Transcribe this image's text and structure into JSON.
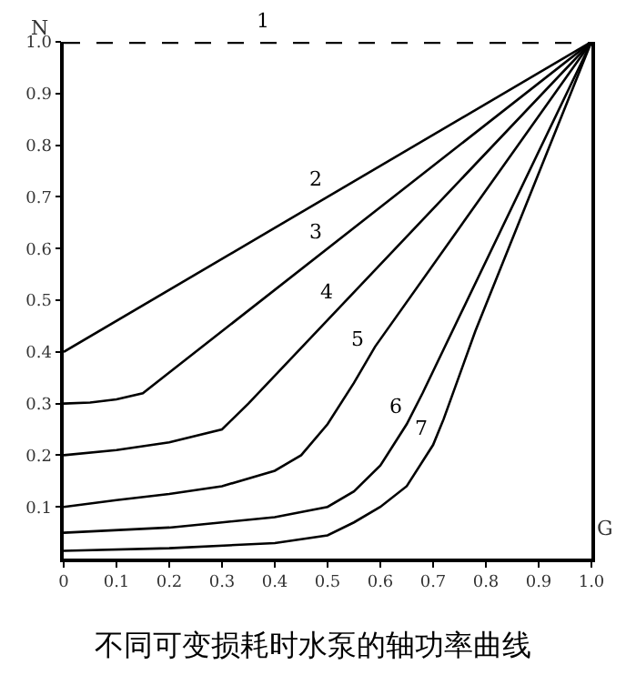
{
  "chart_data": {
    "type": "line",
    "title": "不同可变损耗时水泵的轴功率曲线",
    "xlabel": "G",
    "ylabel": "N",
    "xlim": [
      0,
      1
    ],
    "ylim": [
      0,
      1
    ],
    "xticks": [
      0,
      0.1,
      0.2,
      0.3,
      0.4,
      0.5,
      0.6,
      0.7,
      0.8,
      0.9,
      {
        "value": 1,
        "label": "1.0"
      }
    ],
    "yticks": [
      0.1,
      0.2,
      0.3,
      0.4,
      0.5,
      0.6,
      0.7,
      0.8,
      0.9,
      {
        "value": 1,
        "label": "1.0"
      }
    ],
    "marker": "none",
    "line_style": "solid",
    "series": [
      {
        "name": "1",
        "color": "#000000",
        "line_style": "dashed",
        "x": [
          0,
          1
        ],
        "values": [
          1,
          1
        ]
      },
      {
        "name": "2",
        "color": "#000000",
        "x": [
          0,
          1
        ],
        "values": [
          0.4,
          1
        ]
      },
      {
        "name": "3",
        "color": "#000000",
        "x": [
          0,
          0.05,
          0.1,
          0.15,
          0.2,
          1
        ],
        "values": [
          0.3,
          0.302,
          0.308,
          0.32,
          0.36,
          1
        ]
      },
      {
        "name": "4",
        "color": "#000000",
        "x": [
          0,
          0.1,
          0.2,
          0.3,
          0.35,
          1
        ],
        "values": [
          0.2,
          0.21,
          0.225,
          0.25,
          0.3,
          1
        ]
      },
      {
        "name": "5",
        "color": "#000000",
        "x": [
          0,
          0.1,
          0.2,
          0.3,
          0.4,
          0.45,
          0.5,
          0.55,
          0.59,
          1
        ],
        "values": [
          0.1,
          0.113,
          0.125,
          0.14,
          0.17,
          0.2,
          0.26,
          0.34,
          0.41,
          1
        ]
      },
      {
        "name": "6",
        "color": "#000000",
        "x": [
          0,
          0.2,
          0.3,
          0.4,
          0.5,
          0.55,
          0.6,
          0.65,
          0.68,
          1
        ],
        "values": [
          0.05,
          0.06,
          0.07,
          0.08,
          0.1,
          0.13,
          0.18,
          0.26,
          0.32,
          1
        ]
      },
      {
        "name": "7",
        "color": "#000000",
        "x": [
          0,
          0.2,
          0.4,
          0.5,
          0.55,
          0.6,
          0.65,
          0.7,
          0.72,
          0.78,
          1
        ],
        "values": [
          0.015,
          0.02,
          0.03,
          0.045,
          0.07,
          0.1,
          0.14,
          0.22,
          0.27,
          0.44,
          1
        ]
      }
    ]
  }
}
